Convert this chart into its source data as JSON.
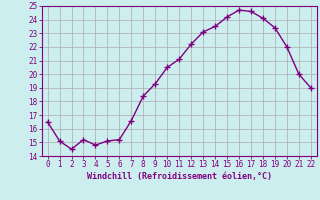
{
  "x": [
    0,
    1,
    2,
    3,
    4,
    5,
    6,
    7,
    8,
    9,
    10,
    11,
    12,
    13,
    14,
    15,
    16,
    17,
    18,
    19,
    20,
    21,
    22
  ],
  "y": [
    16.5,
    15.1,
    14.5,
    15.2,
    14.8,
    15.1,
    15.2,
    16.6,
    18.4,
    19.3,
    20.5,
    21.1,
    22.2,
    23.1,
    23.5,
    24.2,
    24.7,
    24.6,
    24.1,
    23.4,
    22.0,
    20.0,
    19.0
  ],
  "xlim": [
    -0.5,
    22.5
  ],
  "ylim": [
    14,
    25
  ],
  "yticks": [
    14,
    15,
    16,
    17,
    18,
    19,
    20,
    21,
    22,
    23,
    24,
    25
  ],
  "xticks": [
    0,
    1,
    2,
    3,
    4,
    5,
    6,
    7,
    8,
    9,
    10,
    11,
    12,
    13,
    14,
    15,
    16,
    17,
    18,
    19,
    20,
    21,
    22
  ],
  "xlabel": "Windchill (Refroidissement éolien,°C)",
  "line_color": "#800080",
  "marker": "+",
  "bg_color": "#cceeee",
  "grid_color": "#aaaaaa",
  "tick_color": "#800080",
  "label_color": "#800080"
}
